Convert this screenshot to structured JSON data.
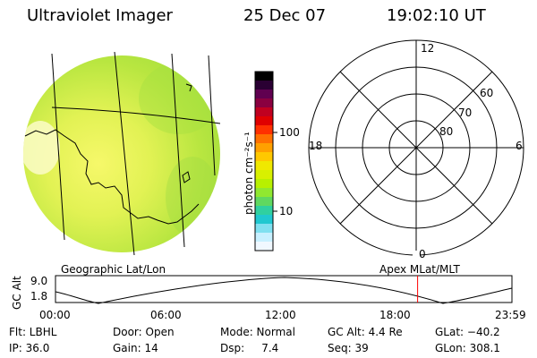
{
  "header": {
    "title": "Ultraviolet Imager",
    "date": "25 Dec 07",
    "time": "19:02:10 UT"
  },
  "colorbar": {
    "unit_label": "photon cm⁻²s⁻¹",
    "ticks": [
      "100",
      "10"
    ],
    "colors": [
      "#000000",
      "#2a0033",
      "#600050",
      "#8a0040",
      "#c00020",
      "#e00000",
      "#ff3000",
      "#ff7000",
      "#ffa000",
      "#ffc800",
      "#f0e800",
      "#d8f000",
      "#b8f000",
      "#90e830",
      "#60d860",
      "#30d0a0",
      "#20c8d0",
      "#80e0f0",
      "#c8f0ff",
      "#f0f8ff"
    ]
  },
  "polar": {
    "mlt_labels": {
      "top": "12",
      "left": "18",
      "right": "6",
      "bottom": "0"
    },
    "lat_labels": [
      "60",
      "70",
      "80"
    ]
  },
  "timeline": {
    "left_label": "Geographic Lat/Lon",
    "right_label": "Apex  MLat/MLT",
    "axis_label": "GC Alt",
    "ymax": "9.0",
    "ymin": "1.8",
    "time_ticks": [
      "00:00",
      "06:00",
      "12:00",
      "18:00",
      "23:59"
    ],
    "current_marker_color": "#ff0000",
    "current_time_hours": 19.04
  },
  "status": {
    "row1": {
      "filter": "Flt: LBHL",
      "door": "Door: Open",
      "mode": "Mode: Normal",
      "gc_alt": "GC Alt: 4.4 Re",
      "glat": "GLat: −40.2"
    },
    "row2": {
      "ip": "IP: 36.0",
      "gain": "Gain: 14",
      "dsp": "Dsp:     7.4",
      "seq": "Seq: 39",
      "glon": "GLon: 308.1"
    }
  }
}
